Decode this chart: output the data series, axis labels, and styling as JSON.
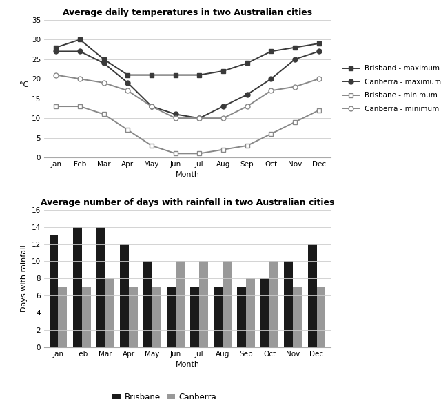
{
  "months": [
    "Jan",
    "Feb",
    "Mar",
    "Apr",
    "May",
    "Jun",
    "Jul",
    "Aug",
    "Sep",
    "Oct",
    "Nov",
    "Dec"
  ],
  "brisbane_max": [
    28,
    30,
    25,
    21,
    21,
    21,
    21,
    22,
    24,
    27,
    28,
    29
  ],
  "canberra_max": [
    27,
    27,
    24,
    19,
    13,
    11,
    10,
    13,
    16,
    20,
    25,
    27
  ],
  "brisbane_min": [
    13,
    13,
    11,
    7,
    3,
    1,
    1,
    2,
    3,
    6,
    9,
    12
  ],
  "canberra_min": [
    21,
    20,
    19,
    17,
    13,
    10,
    10,
    10,
    13,
    17,
    18,
    20
  ],
  "brisbane_rain": [
    13,
    14,
    14,
    12,
    10,
    7,
    7,
    7,
    7,
    8,
    10,
    12
  ],
  "canberra_rain": [
    7,
    7,
    8,
    7,
    7,
    10,
    10,
    10,
    8,
    10,
    7,
    7
  ],
  "line_chart_title": "Average daily temperatures in two Australian cities",
  "bar_chart_title": "Average number of days with rainfall in two Australian cities",
  "line_ylabel": "°C",
  "line_xlabel": "Month",
  "bar_ylabel": "Days with rainfall",
  "bar_xlabel": "Month",
  "line_ylim": [
    0,
    35
  ],
  "bar_ylim": [
    0,
    16
  ],
  "line_yticks": [
    0,
    5,
    10,
    15,
    20,
    25,
    30,
    35
  ],
  "bar_yticks": [
    0,
    2,
    4,
    6,
    8,
    10,
    12,
    14,
    16
  ],
  "dark_color": "#3a3a3a",
  "mid_color": "#888888",
  "brisbane_bar_color": "#1a1a1a",
  "canberra_bar_color": "#999999",
  "legend_labels_line": [
    "Brisband - maximum",
    "Canberra - maximum",
    "Brisbane - minimum",
    "Canberra - minimum"
  ],
  "legend_labels_bar": [
    "Brisbane",
    "Canberra"
  ],
  "background_color": "#ffffff"
}
